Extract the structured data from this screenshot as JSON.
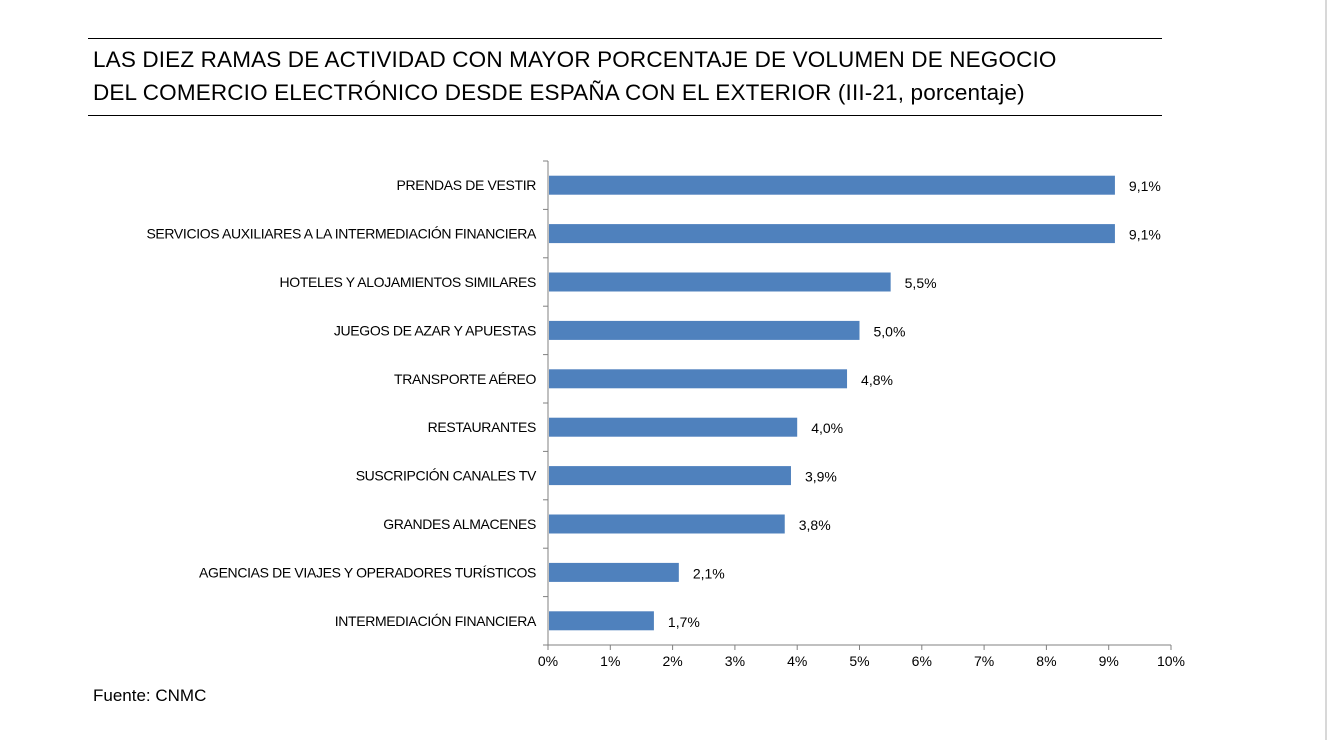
{
  "title": {
    "line1": "LAS DIEZ RAMAS DE ACTIVIDAD CON MAYOR PORCENTAJE DE VOLUMEN DE NEGOCIO",
    "line2": "DEL COMERCIO ELECTRÓNICO DESDE ESPAÑA CON EL EXTERIOR (III-21, porcentaje)"
  },
  "source": "Fuente: CNMC",
  "chart_data": {
    "type": "bar",
    "orientation": "horizontal",
    "categories": [
      "PRENDAS DE VESTIR",
      "SERVICIOS AUXILIARES A LA INTERMEDIACIÓN FINANCIERA",
      "HOTELES  Y ALOJAMIENTOS SIMILARES",
      "JUEGOS DE AZAR Y APUESTAS",
      "TRANSPORTE AÉREO",
      "RESTAURANTES",
      "SUSCRIPCIÓN CANALES TV",
      "GRANDES ALMACENES",
      "AGENCIAS DE VIAJES Y OPERADORES TURÍSTICOS",
      "INTERMEDIACIÓN FINANCIERA"
    ],
    "values": [
      9.1,
      9.1,
      5.5,
      5.0,
      4.8,
      4.0,
      3.9,
      3.8,
      2.1,
      1.7
    ],
    "value_labels": [
      "9,1%",
      "9,1%",
      "5,5%",
      "5,0%",
      "4,8%",
      "4,0%",
      "3,9%",
      "3,8%",
      "2,1%",
      "1,7%"
    ],
    "xlim": [
      0,
      10
    ],
    "xticks": [
      0,
      1,
      2,
      3,
      4,
      5,
      6,
      7,
      8,
      9,
      10
    ],
    "xtick_labels": [
      "0%",
      "1%",
      "2%",
      "3%",
      "4%",
      "5%",
      "6%",
      "7%",
      "8%",
      "9%",
      "10%"
    ],
    "bar_color": "#4f81bd",
    "grid": false,
    "legend": false
  }
}
